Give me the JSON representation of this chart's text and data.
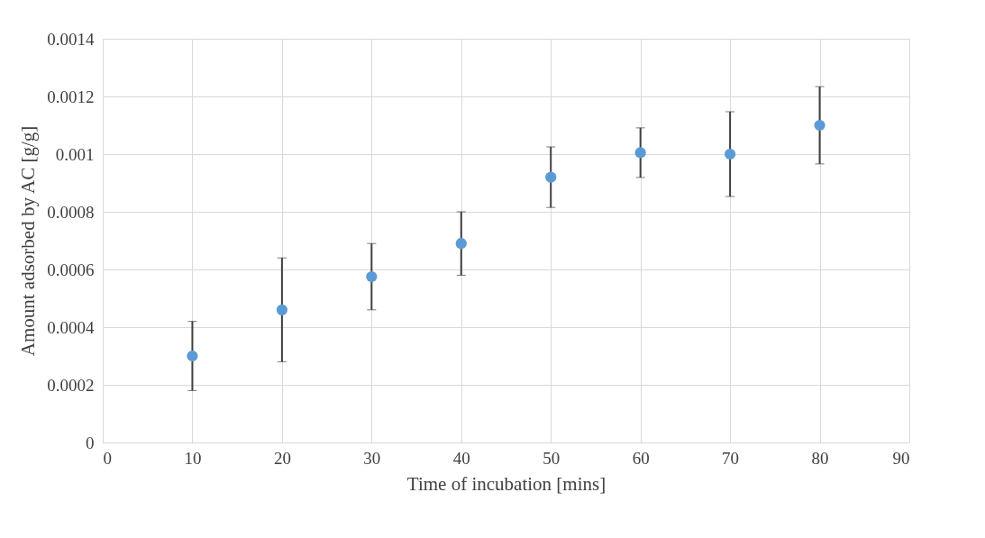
{
  "chart_data": {
    "type": "scatter",
    "xlabel": "Time of incubation [mins]",
    "ylabel": "Amount adsorbed by AC [g/g]",
    "x": [
      10,
      20,
      30,
      40,
      50,
      60,
      70,
      80
    ],
    "series": [
      {
        "color": "#5b9bd5",
        "values": [
          0.0003,
          0.00046,
          0.000575,
          0.00069,
          0.00092,
          0.001005,
          0.001,
          0.0011
        ],
        "errors": [
          0.00012,
          0.00018,
          0.000115,
          0.00011,
          0.000105,
          8.6e-05,
          0.000147,
          0.000134
        ]
      }
    ],
    "xlim": [
      0,
      90
    ],
    "xticks": [
      0,
      10,
      20,
      30,
      40,
      50,
      60,
      70,
      80,
      90
    ],
    "ylim": [
      0,
      0.0014
    ],
    "yticks": [
      0,
      0.0002,
      0.0004,
      0.0006,
      0.0008,
      0.001,
      0.0012,
      0.0014
    ],
    "grid": true,
    "marker": "circle",
    "legend": false
  }
}
